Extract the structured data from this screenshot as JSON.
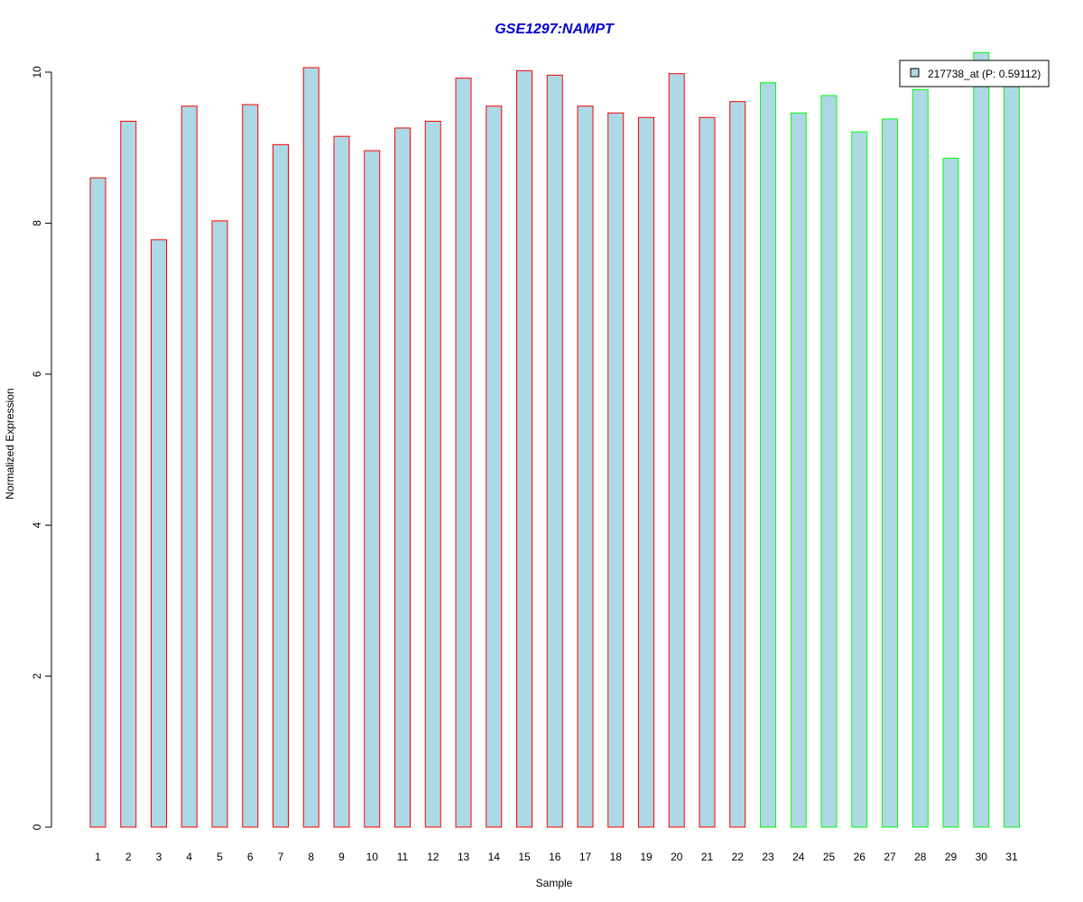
{
  "chart_data": {
    "type": "bar",
    "title": "GSE1297:NAMPT",
    "xlabel": "Sample",
    "ylabel": "Normalized Expression",
    "ylim": [
      0,
      10.3
    ],
    "y_ticks": [
      0,
      2,
      4,
      6,
      8,
      10
    ],
    "categories": [
      "1",
      "2",
      "3",
      "4",
      "5",
      "6",
      "7",
      "8",
      "9",
      "10",
      "11",
      "12",
      "13",
      "14",
      "15",
      "16",
      "17",
      "18",
      "19",
      "20",
      "21",
      "22",
      "23",
      "24",
      "25",
      "26",
      "27",
      "28",
      "29",
      "30",
      "31"
    ],
    "series": [
      {
        "name": "217738_at (P: 0.59112)",
        "fill": "#add8e6",
        "values": [
          8.6,
          9.35,
          7.78,
          9.55,
          8.03,
          9.57,
          9.04,
          10.06,
          9.15,
          8.96,
          9.26,
          9.35,
          9.92,
          9.55,
          10.02,
          9.96,
          9.55,
          9.46,
          9.4,
          9.98,
          9.4,
          9.61,
          9.86,
          9.46,
          9.69,
          9.21,
          9.38,
          9.77,
          8.86,
          10.26,
          9.88
        ]
      }
    ],
    "groups": [
      {
        "border": "#ff0000",
        "count": 22
      },
      {
        "border": "#00ff00",
        "count": 9
      }
    ],
    "legend": {
      "label": "217738_at (P: 0.59112)",
      "placement": "top-right"
    },
    "colors": {
      "title": "#0000cc"
    }
  }
}
